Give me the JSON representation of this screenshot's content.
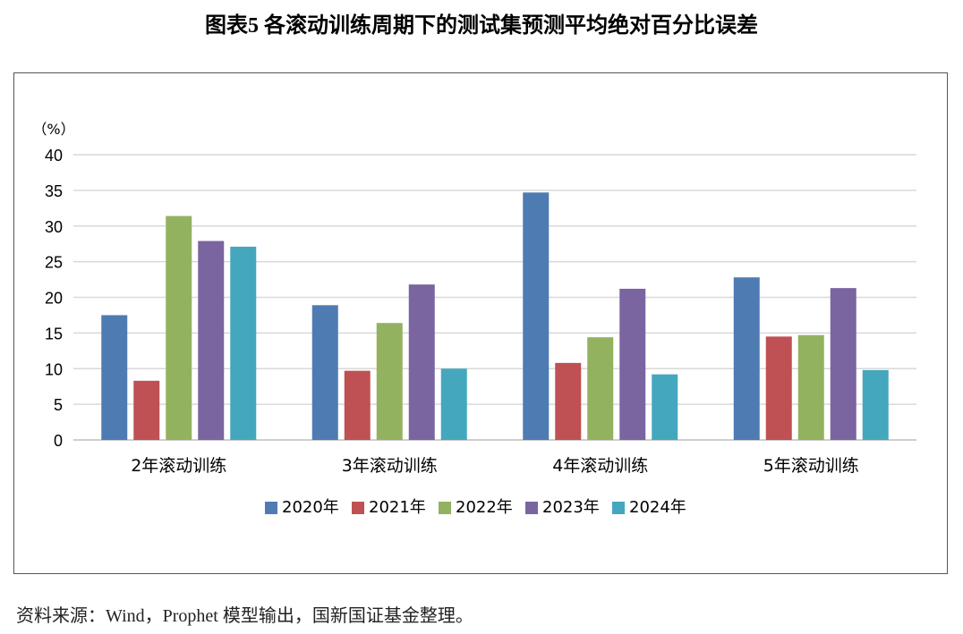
{
  "title": "图表5 各滚动训练周期下的测试集预测平均绝对百分比误差",
  "source": "资料来源：Wind，Prophet 模型输出，国新国证基金整理。",
  "chart_data": {
    "type": "bar",
    "ylabel": "（%）",
    "ylim": [
      0,
      40
    ],
    "yticks": [
      0,
      5,
      10,
      15,
      20,
      25,
      30,
      35,
      40
    ],
    "grid": true,
    "legend_position": "bottom",
    "categories": [
      "2年滚动训练",
      "3年滚动训练",
      "4年滚动训练",
      "5年滚动训练"
    ],
    "series": [
      {
        "name": "2020年",
        "color": "#4e7cb2",
        "values": [
          17.5,
          18.9,
          34.7,
          22.8
        ]
      },
      {
        "name": "2021年",
        "color": "#bf5054",
        "values": [
          8.3,
          9.7,
          10.8,
          14.5
        ]
      },
      {
        "name": "2022年",
        "color": "#93b260",
        "values": [
          31.4,
          16.4,
          14.4,
          14.7
        ]
      },
      {
        "name": "2023年",
        "color": "#7a65a0",
        "values": [
          27.9,
          21.8,
          21.2,
          21.3
        ]
      },
      {
        "name": "2024年",
        "color": "#45a7bd",
        "values": [
          27.1,
          10.0,
          9.2,
          9.8
        ]
      }
    ]
  }
}
